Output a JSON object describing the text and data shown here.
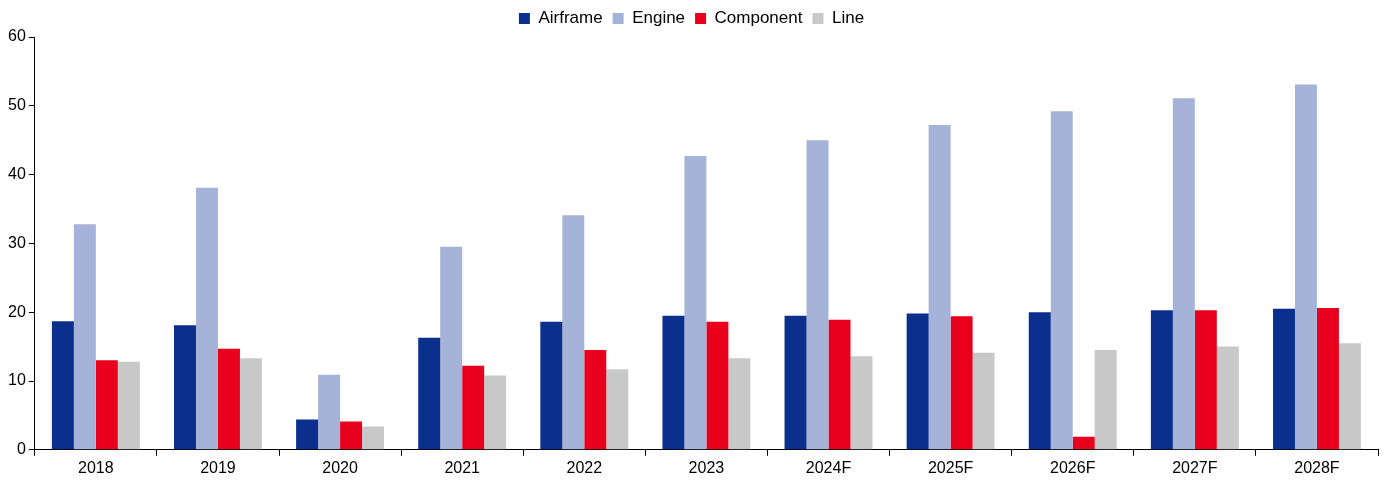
{
  "chart_data": {
    "type": "bar",
    "categories": [
      "2018",
      "2019",
      "2020",
      "2021",
      "2022",
      "2023",
      "2024F",
      "2025F",
      "2026F",
      "2027F",
      "2028F"
    ],
    "series": [
      {
        "name": "Airframe",
        "color": "#0a2f8c",
        "values": [
          18.7,
          18.1,
          4.4,
          16.3,
          18.6,
          19.5,
          19.5,
          19.8,
          20.0,
          20.3,
          20.5
        ]
      },
      {
        "name": "Engine",
        "color": "#a6b3d9",
        "values": [
          32.8,
          38.1,
          10.9,
          29.5,
          34.1,
          42.7,
          45.0,
          47.2,
          49.2,
          51.1,
          53.1
        ]
      },
      {
        "name": "Component",
        "color": "#e8001c",
        "values": [
          13.0,
          14.7,
          4.1,
          12.2,
          14.5,
          18.6,
          18.9,
          19.4,
          1.9,
          20.3,
          20.6
        ]
      },
      {
        "name": "Line",
        "color": "#c8c8c8",
        "values": [
          12.8,
          13.3,
          3.4,
          10.8,
          11.7,
          13.3,
          13.6,
          14.1,
          14.5,
          15.0,
          15.5
        ]
      }
    ],
    "ylim": [
      0,
      60
    ],
    "yticks": [
      0,
      10,
      20,
      30,
      40,
      50,
      60
    ],
    "grid": false,
    "legend": "top"
  }
}
